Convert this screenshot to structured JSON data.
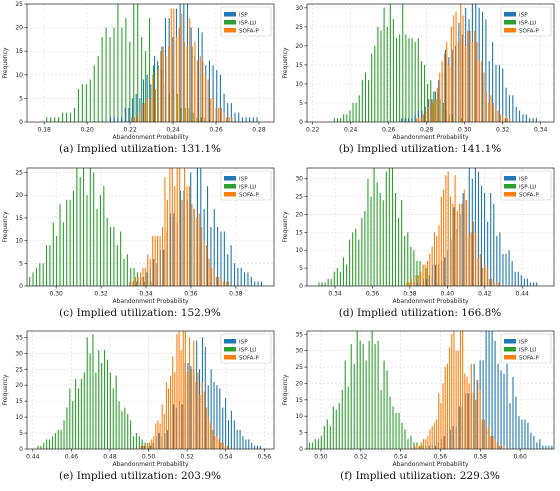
{
  "colors": {
    "ISP": "#1f77b4",
    "ISP-LU": "#2ca02c",
    "SOFA-P": "#ff7f0e"
  },
  "chart_data": [
    {
      "type": "bar",
      "caption": "(a) Implied utilization: 131.1%",
      "xlabel": "Abandonment Probability",
      "ylabel": "Frequency",
      "xlim": [
        0.172,
        0.287
      ],
      "ylim": [
        0,
        25
      ],
      "xticks": [
        "0.18",
        "0.20",
        "0.22",
        "0.24",
        "0.26",
        "0.28"
      ],
      "xtick_values": [
        0.18,
        0.2,
        0.22,
        0.24,
        0.26,
        0.28
      ],
      "yticks": [
        "0",
        "5",
        "10",
        "15",
        "20",
        "25"
      ],
      "ytick_values": [
        0,
        5,
        10,
        15,
        20,
        25
      ],
      "legend": [
        "ISP",
        "ISP-LU",
        "SOFA-P"
      ],
      "legend_position": "top-right",
      "grid": true,
      "series": [
        {
          "name": "ISP",
          "center": 0.244,
          "spread": 0.0125,
          "peak": 22
        },
        {
          "name": "ISP-LU",
          "center": 0.219,
          "spread": 0.0135,
          "peak": 23
        },
        {
          "name": "SOFA-P",
          "center": 0.243,
          "spread": 0.009,
          "peak": 22
        }
      ],
      "bins_per_series": 44
    },
    {
      "type": "bar",
      "caption": "(b) Implied utilization: 141.1%",
      "xlabel": "Abandonment Probability",
      "ylabel": "Frequency",
      "xlim": [
        0.217,
        0.347
      ],
      "ylim": [
        0,
        31
      ],
      "xticks": [
        "0.22",
        "0.24",
        "0.26",
        "0.28",
        "0.30",
        "0.32",
        "0.34"
      ],
      "xtick_values": [
        0.22,
        0.24,
        0.26,
        0.28,
        0.3,
        0.32,
        0.34
      ],
      "yticks": [
        "0",
        "5",
        "10",
        "15",
        "20",
        "25",
        "30"
      ],
      "ytick_values": [
        0,
        5,
        10,
        15,
        20,
        25,
        30
      ],
      "legend": [
        "ISP",
        "ISP-LU",
        "SOFA-P"
      ],
      "legend_position": "top-right",
      "grid": true,
      "series": [
        {
          "name": "ISP",
          "center": 0.303,
          "spread": 0.013,
          "peak": 27
        },
        {
          "name": "ISP-LU",
          "center": 0.265,
          "spread": 0.012,
          "peak": 30
        },
        {
          "name": "SOFA-P",
          "center": 0.298,
          "spread": 0.009,
          "peak": 26
        }
      ],
      "bins_per_series": 44
    },
    {
      "type": "bar",
      "caption": "(c) Implied utilization: 152.9%",
      "xlabel": "Abandonment Probability",
      "ylabel": "Frequency",
      "xlim": [
        0.287,
        0.397
      ],
      "ylim": [
        0,
        26
      ],
      "xticks": [
        "0.30",
        "0.32",
        "0.34",
        "0.36",
        "0.38"
      ],
      "xtick_values": [
        0.3,
        0.32,
        0.34,
        0.36,
        0.38
      ],
      "yticks": [
        "0",
        "5",
        "10",
        "15",
        "20",
        "25"
      ],
      "ytick_values": [
        0,
        5,
        10,
        15,
        20,
        25
      ],
      "legend": [
        "ISP",
        "ISP-LU",
        "SOFA-P"
      ],
      "legend_position": "top-right",
      "grid": true,
      "series": [
        {
          "name": "ISP",
          "center": 0.362,
          "spread": 0.011,
          "peak": 22
        },
        {
          "name": "ISP-LU",
          "center": 0.313,
          "spread": 0.011,
          "peak": 26
        },
        {
          "name": "SOFA-P",
          "center": 0.354,
          "spread": 0.008,
          "peak": 26
        }
      ],
      "bins_per_series": 44
    },
    {
      "type": "bar",
      "caption": "(d) Implied utilization: 166.8%",
      "xlabel": "Abandonment Probability",
      "ylabel": "Frequency",
      "xlim": [
        0.325,
        0.457
      ],
      "ylim": [
        0,
        33
      ],
      "xticks": [
        "0.34",
        "0.36",
        "0.38",
        "0.40",
        "0.42",
        "0.44"
      ],
      "xtick_values": [
        0.34,
        0.36,
        0.38,
        0.4,
        0.42,
        0.44
      ],
      "yticks": [
        "0",
        "5",
        "10",
        "15",
        "20",
        "25",
        "30"
      ],
      "ytick_values": [
        0,
        5,
        10,
        15,
        20,
        25,
        30
      ],
      "legend": [
        "ISP",
        "ISP-LU",
        "SOFA-P"
      ],
      "legend_position": "top-right",
      "grid": true,
      "series": [
        {
          "name": "ISP",
          "center": 0.414,
          "spread": 0.012,
          "peak": 28
        },
        {
          "name": "ISP-LU",
          "center": 0.365,
          "spread": 0.012,
          "peak": 31
        },
        {
          "name": "SOFA-P",
          "center": 0.403,
          "spread": 0.009,
          "peak": 29
        }
      ],
      "bins_per_series": 44
    },
    {
      "type": "bar",
      "caption": "(e) Implied utilization: 203.9%",
      "xlabel": "Abandonment Probability",
      "ylabel": "Frequency",
      "xlim": [
        0.437,
        0.565
      ],
      "ylim": [
        0,
        37
      ],
      "xticks": [
        "0.44",
        "0.46",
        "0.48",
        "0.50",
        "0.52",
        "0.54",
        "0.56"
      ],
      "xtick_values": [
        0.44,
        0.46,
        0.48,
        0.5,
        0.52,
        0.54,
        0.56
      ],
      "yticks": [
        "0",
        "5",
        "10",
        "15",
        "20",
        "25",
        "30",
        "35"
      ],
      "ytick_values": [
        0,
        5,
        10,
        15,
        20,
        25,
        30,
        35
      ],
      "legend": [
        "ISP",
        "ISP-LU",
        "SOFA-P"
      ],
      "legend_position": "top-right",
      "grid": true,
      "series": [
        {
          "name": "ISP",
          "center": 0.527,
          "spread": 0.011,
          "peak": 29
        },
        {
          "name": "ISP-LU",
          "center": 0.472,
          "spread": 0.011,
          "peak": 31
        },
        {
          "name": "SOFA-P",
          "center": 0.518,
          "spread": 0.008,
          "peak": 35
        }
      ],
      "bins_per_series": 44
    },
    {
      "type": "bar",
      "caption": "(f) Implied utilization: 229.3%",
      "xlabel": "Abandonment Probability",
      "ylabel": "Frequency",
      "xlim": [
        0.493,
        0.617
      ],
      "ylim": [
        0,
        36
      ],
      "xticks": [
        "0.50",
        "0.52",
        "0.54",
        "0.56",
        "0.58",
        "0.60"
      ],
      "xtick_values": [
        0.5,
        0.52,
        0.54,
        0.56,
        0.58,
        0.6
      ],
      "yticks": [
        "0",
        "5",
        "10",
        "15",
        "20",
        "25",
        "30",
        "35"
      ],
      "ytick_values": [
        0,
        5,
        10,
        15,
        20,
        25,
        30,
        35
      ],
      "legend": [
        "ISP",
        "ISP-LU",
        "SOFA-P"
      ],
      "legend_position": "top-right",
      "grid": true,
      "series": [
        {
          "name": "ISP",
          "center": 0.585,
          "spread": 0.011,
          "peak": 30
        },
        {
          "name": "ISP-LU",
          "center": 0.522,
          "spread": 0.011,
          "peak": 34
        },
        {
          "name": "SOFA-P",
          "center": 0.569,
          "spread": 0.008,
          "peak": 34
        }
      ],
      "bins_per_series": 44
    }
  ]
}
